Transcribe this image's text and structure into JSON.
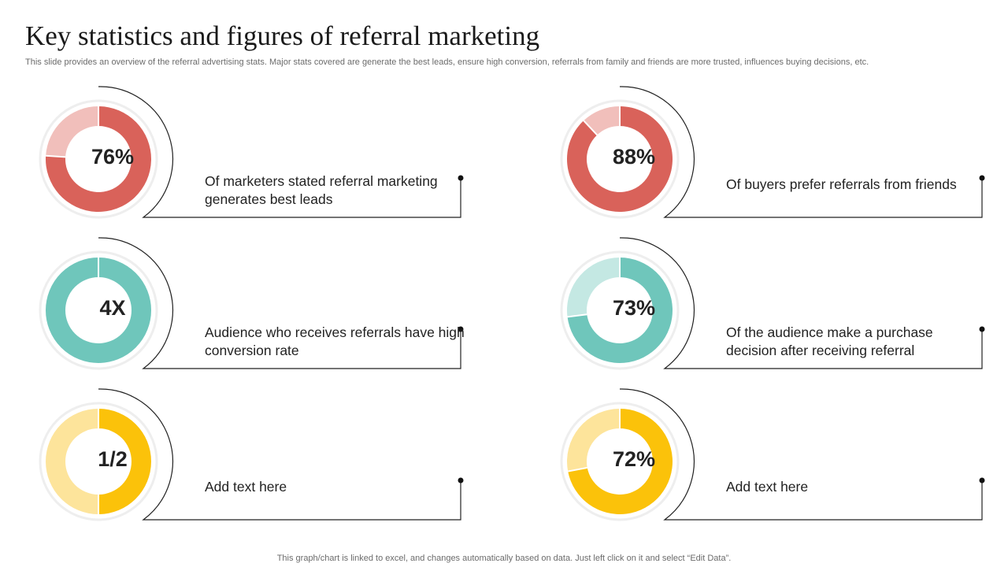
{
  "slide": {
    "title": "Key statistics and figures of referral marketing",
    "subtitle": "This slide provides an overview of the referral advertising stats. Major stats covered are generate the best leads, ensure high conversion, referrals from family and friends are more trusted, influences buying decisions, etc.",
    "footer": "This graph/chart is linked to excel,  and changes automatically based on data. Just left click on it and select “Edit Data”."
  },
  "chart_data": [
    {
      "type": "pie",
      "label": "76%",
      "description": "Of marketers stated referral marketing generates best leads",
      "slices": [
        {
          "name": "",
          "value": 76,
          "color": "#d9625a"
        },
        {
          "name": "",
          "value": 24,
          "color": "#f1bfbb"
        }
      ]
    },
    {
      "type": "pie",
      "label": "88%",
      "description": "Of buyers prefer referrals from friends",
      "slices": [
        {
          "name": "",
          "value": 88,
          "color": "#d9625a"
        },
        {
          "name": "",
          "value": 12,
          "color": "#f1bfbb"
        }
      ]
    },
    {
      "type": "pie",
      "label": "4X",
      "description": "Audience who receives referrals have high conversion rate",
      "slices": [
        {
          "name": "",
          "value": 100,
          "color": "#6fc6bb"
        }
      ]
    },
    {
      "type": "pie",
      "label": "73%",
      "description": "Of the audience make a purchase decision after receiving referral",
      "slices": [
        {
          "name": "",
          "value": 73,
          "color": "#6fc6bb"
        },
        {
          "name": "",
          "value": 27,
          "color": "#c4e8e3"
        }
      ]
    },
    {
      "type": "pie",
      "label": "1/2",
      "description": "Add text here",
      "slices": [
        {
          "name": "",
          "value": 50,
          "color": "#fbc20a"
        },
        {
          "name": "",
          "value": 50,
          "color": "#fde49b"
        }
      ]
    },
    {
      "type": "pie",
      "label": "72%",
      "description": "Add text here",
      "slices": [
        {
          "name": "",
          "value": 72,
          "color": "#fbc20a"
        },
        {
          "name": "",
          "value": 28,
          "color": "#fde49b"
        }
      ]
    }
  ]
}
